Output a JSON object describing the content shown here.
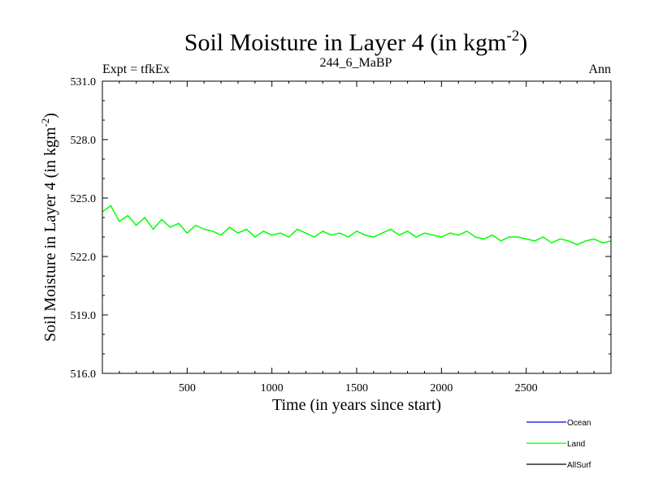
{
  "chart_data": {
    "type": "line",
    "title": "Soil Moisture in Layer 4 (in kgm",
    "title_superscript": "-2",
    "title_suffix": ")",
    "subtitle_left": "Expt = tfkEx",
    "subtitle_center": "244_6_MaBP",
    "subtitle_right": "Ann",
    "xlabel": "Time (in years since start)",
    "ylabel": "Soil Moisture in Layer 4 (in kgm",
    "ylabel_superscript": "-2",
    "ylabel_suffix": ")",
    "xlim": [
      0,
      3000
    ],
    "ylim": [
      516.0,
      531.0
    ],
    "x_ticks": [
      500,
      1000,
      1500,
      2000,
      2500
    ],
    "x_tick_labels": [
      "500",
      "1000",
      "1500",
      "2000",
      "2500"
    ],
    "y_ticks": [
      516.0,
      519.0,
      522.0,
      525.0,
      528.0,
      531.0
    ],
    "y_tick_labels": [
      "516.0",
      "519.0",
      "522.0",
      "525.0",
      "528.0",
      "531.0"
    ],
    "legend_position": "bottom-right",
    "series": [
      {
        "name": "Ocean",
        "color": "#0000ff",
        "values": []
      },
      {
        "name": "Land",
        "color": "#00ff00",
        "x": [
          0,
          50,
          100,
          150,
          200,
          250,
          300,
          350,
          400,
          450,
          500,
          550,
          600,
          650,
          700,
          750,
          800,
          850,
          900,
          950,
          1000,
          1050,
          1100,
          1150,
          1200,
          1250,
          1300,
          1350,
          1400,
          1450,
          1500,
          1550,
          1600,
          1650,
          1700,
          1750,
          1800,
          1850,
          1900,
          1950,
          2000,
          2050,
          2100,
          2150,
          2200,
          2250,
          2300,
          2350,
          2400,
          2450,
          2500,
          2550,
          2600,
          2650,
          2700,
          2750,
          2800,
          2850,
          2900,
          2950,
          3000
        ],
        "values": [
          524.3,
          524.6,
          523.8,
          524.1,
          523.6,
          524.0,
          523.4,
          523.9,
          523.5,
          523.7,
          523.2,
          523.6,
          523.4,
          523.3,
          523.1,
          523.5,
          523.2,
          523.4,
          523.0,
          523.3,
          523.1,
          523.2,
          523.0,
          523.4,
          523.2,
          523.0,
          523.3,
          523.1,
          523.2,
          523.0,
          523.3,
          523.1,
          523.0,
          523.2,
          523.4,
          523.1,
          523.3,
          523.0,
          523.2,
          523.1,
          523.0,
          523.2,
          523.1,
          523.3,
          523.0,
          522.9,
          523.1,
          522.8,
          523.0,
          523.0,
          522.9,
          522.8,
          523.0,
          522.7,
          522.9,
          522.8,
          522.6,
          522.8,
          522.9,
          522.7,
          522.8
        ]
      },
      {
        "name": "AllSurf",
        "color": "#000000",
        "values": []
      }
    ]
  }
}
